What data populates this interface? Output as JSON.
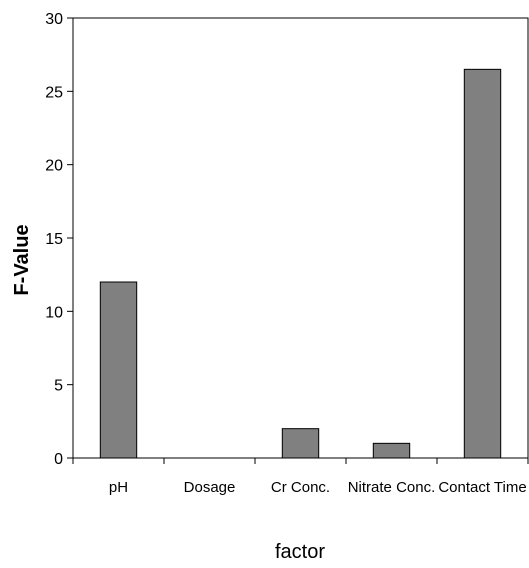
{
  "chart_data": {
    "type": "bar",
    "categories": [
      "pH",
      "Dosage",
      "Cr Conc.",
      "Nitrate Conc.",
      "Contact Time"
    ],
    "values": [
      12,
      0,
      2,
      1,
      26.5
    ],
    "xlabel": "factor",
    "ylabel": "F-Value",
    "ylim": [
      0,
      30
    ],
    "yticks": [
      0,
      5,
      10,
      15,
      20,
      25,
      30
    ],
    "grid": false,
    "legend": "none",
    "bar_color": "#808080",
    "bar_edge_color": "#000000"
  }
}
